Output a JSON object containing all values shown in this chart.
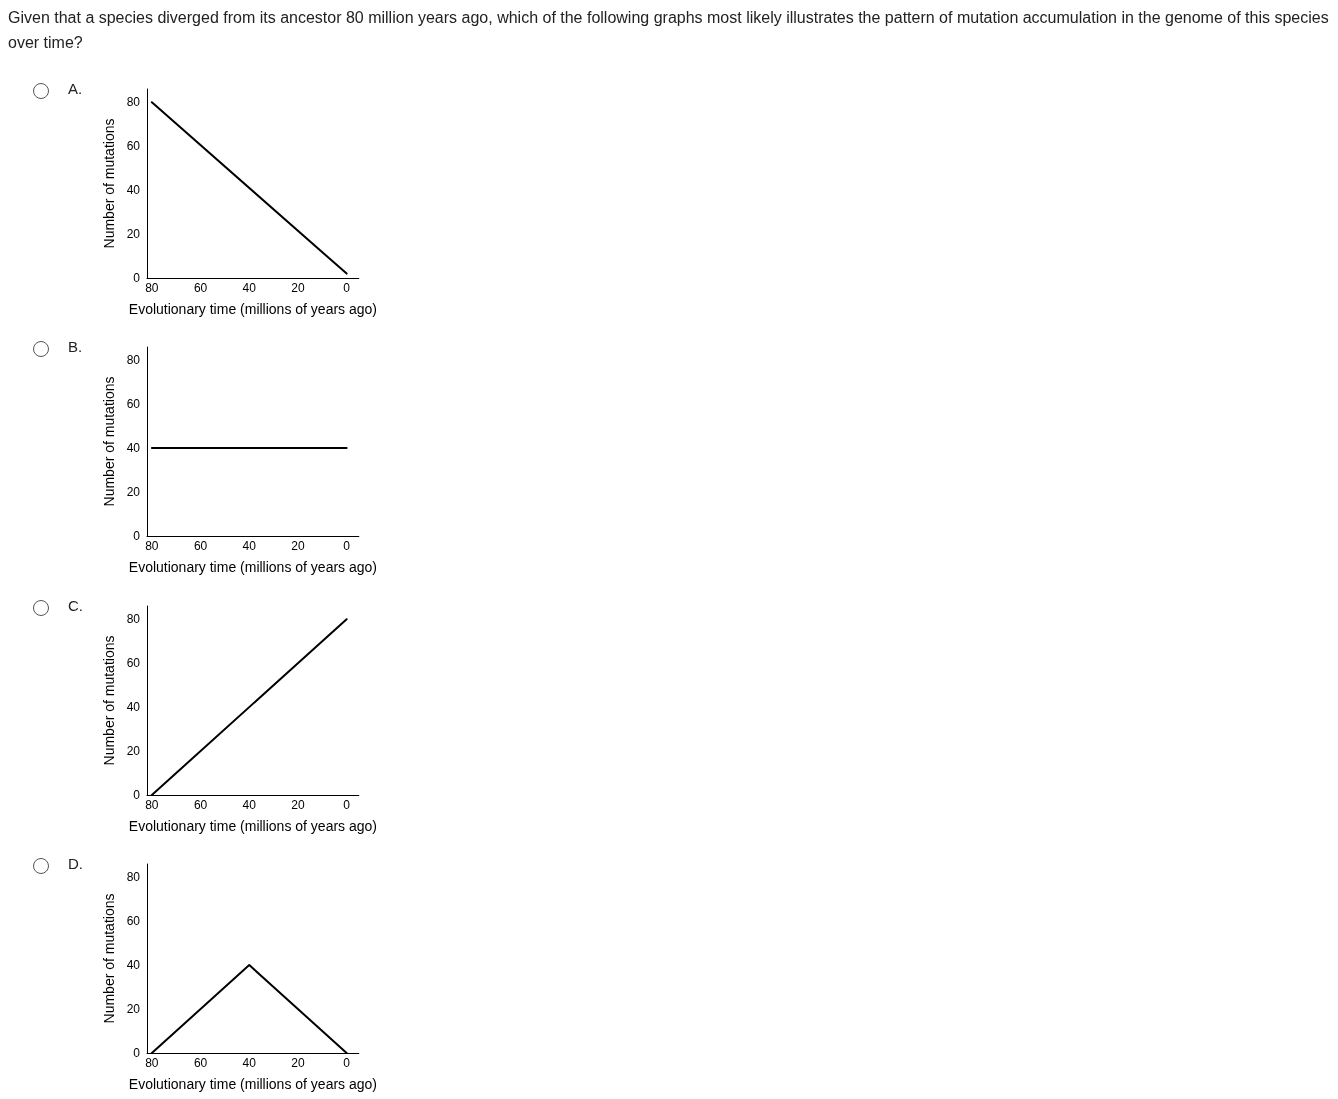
{
  "chart_data": [
    {
      "type": "line",
      "title": "A.",
      "annotations": [
        "Given that a species diverged from its ancestor 80 million years ago, which of the following graphs most likely illustrates the pattern of mutation accumulation in the genome of this species over time?"
      ],
      "xlabel": "Evolutionary time (millions of years ago)",
      "ylabel": "Number of mutations",
      "x": [
        80,
        0
      ],
      "values": [
        80,
        2
      ],
      "color": "#000000",
      "xlim": [
        82,
        -5
      ],
      "ylim": [
        0,
        86
      ],
      "xticks": [
        80,
        60,
        40,
        20,
        0
      ],
      "yticks": [
        0,
        20,
        40,
        60,
        80
      ]
    },
    {
      "type": "line",
      "title": "B.",
      "xlabel": "Evolutionary time (millions of years ago)",
      "ylabel": "Number of mutations",
      "x": [
        80,
        0
      ],
      "values": [
        40,
        40
      ],
      "color": "#000000",
      "xlim": [
        82,
        -5
      ],
      "ylim": [
        0,
        86
      ],
      "xticks": [
        80,
        60,
        40,
        20,
        0
      ],
      "yticks": [
        0,
        20,
        40,
        60,
        80
      ]
    },
    {
      "type": "line",
      "title": "C.",
      "xlabel": "Evolutionary time (millions of years ago)",
      "ylabel": "Number of mutations",
      "x": [
        80,
        0
      ],
      "values": [
        0,
        80
      ],
      "color": "#000000",
      "xlim": [
        82,
        -5
      ],
      "ylim": [
        0,
        86
      ],
      "xticks": [
        80,
        60,
        40,
        20,
        0
      ],
      "yticks": [
        0,
        20,
        40,
        60,
        80
      ]
    },
    {
      "type": "line",
      "title": "D.",
      "xlabel": "Evolutionary time (millions of years ago)",
      "ylabel": "Number of mutations",
      "x": [
        80,
        40,
        0
      ],
      "values": [
        0,
        40,
        0
      ],
      "color": "#000000",
      "xlim": [
        82,
        -5
      ],
      "ylim": [
        0,
        86
      ],
      "xticks": [
        80,
        60,
        40,
        20,
        0
      ],
      "yticks": [
        0,
        20,
        40,
        60,
        80
      ]
    }
  ]
}
